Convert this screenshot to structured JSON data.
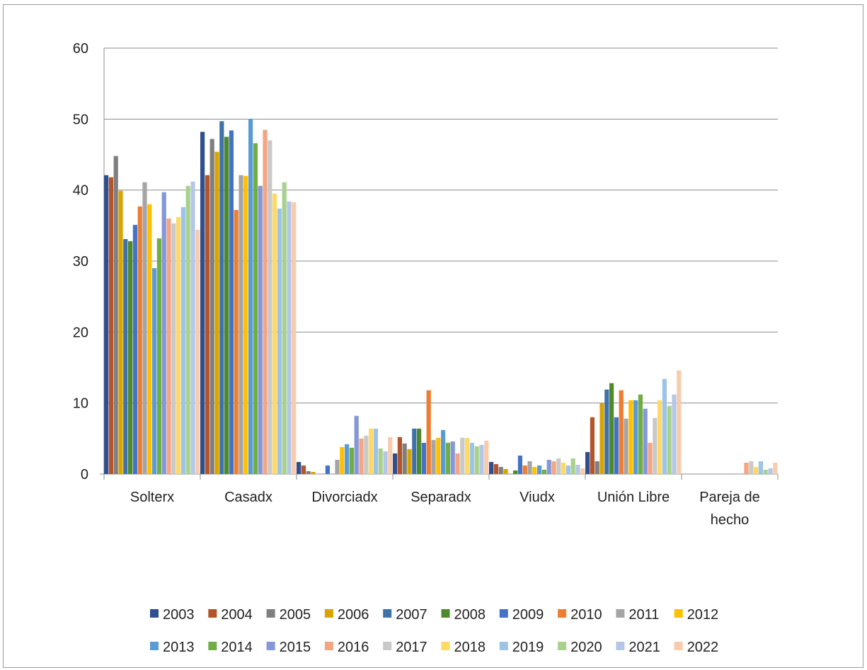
{
  "chart_data": {
    "type": "bar",
    "title": "",
    "xlabel": "",
    "ylabel": "",
    "ylim": [
      0,
      60
    ],
    "yticks": [
      0,
      10,
      20,
      30,
      40,
      50,
      60
    ],
    "grid": true,
    "legend_position": "bottom",
    "categories": [
      [
        "Solterx"
      ],
      [
        "Casadx"
      ],
      [
        "Divorciadx"
      ],
      [
        "Separadx"
      ],
      [
        "Viudx"
      ],
      [
        "Unión Libre"
      ],
      [
        "Pareja de",
        "hecho"
      ]
    ],
    "series": [
      {
        "name": "2003",
        "color": "#2F4F8F",
        "values": [
          42.1,
          48.2,
          1.7,
          2.9,
          1.7,
          3.1,
          0
        ]
      },
      {
        "name": "2004",
        "color": "#B4542A",
        "values": [
          41.8,
          42.1,
          1.2,
          5.2,
          1.4,
          8.0,
          0
        ]
      },
      {
        "name": "2005",
        "color": "#7F7F7F",
        "values": [
          44.8,
          47.2,
          0.4,
          4.3,
          1.0,
          1.8,
          0
        ]
      },
      {
        "name": "2006",
        "color": "#D9A400",
        "values": [
          39.9,
          45.4,
          0.3,
          3.5,
          0.7,
          10.0,
          0
        ]
      },
      {
        "name": "2007",
        "color": "#3E72A8",
        "values": [
          33.1,
          49.7,
          0,
          6.4,
          0,
          11.9,
          0
        ]
      },
      {
        "name": "2008",
        "color": "#4E8A2C",
        "values": [
          32.8,
          47.5,
          0,
          6.4,
          0.5,
          12.8,
          0
        ]
      },
      {
        "name": "2009",
        "color": "#4472C4",
        "values": [
          35.1,
          48.4,
          1.2,
          4.4,
          2.6,
          8.0,
          0
        ]
      },
      {
        "name": "2010",
        "color": "#ED7D31",
        "values": [
          37.7,
          37.2,
          0,
          11.8,
          1.2,
          11.8,
          0
        ]
      },
      {
        "name": "2011",
        "color": "#A5A5A5",
        "values": [
          41.1,
          42.1,
          2.0,
          4.8,
          1.8,
          7.8,
          0
        ]
      },
      {
        "name": "2012",
        "color": "#FFC000",
        "values": [
          38.0,
          42.0,
          3.8,
          5.1,
          1.0,
          10.4,
          0
        ]
      },
      {
        "name": "2013",
        "color": "#5B9BD5",
        "values": [
          29.0,
          50.0,
          4.2,
          6.2,
          1.2,
          10.4,
          0
        ]
      },
      {
        "name": "2014",
        "color": "#70AD47",
        "values": [
          33.2,
          46.6,
          3.7,
          4.4,
          0.6,
          11.2,
          0
        ]
      },
      {
        "name": "2015",
        "color": "#8497D8",
        "values": [
          39.7,
          40.6,
          8.2,
          4.6,
          2.0,
          9.2,
          0
        ]
      },
      {
        "name": "2016",
        "color": "#F4A582",
        "values": [
          36.0,
          48.5,
          5.0,
          2.9,
          1.8,
          4.4,
          1.6
        ]
      },
      {
        "name": "2017",
        "color": "#C9C9C9",
        "values": [
          35.3,
          47.0,
          5.4,
          5.1,
          2.2,
          7.9,
          1.8
        ]
      },
      {
        "name": "2018",
        "color": "#FFD966",
        "values": [
          36.2,
          39.5,
          6.4,
          5.1,
          1.6,
          10.4,
          1.0
        ]
      },
      {
        "name": "2019",
        "color": "#9DC3E6",
        "values": [
          37.6,
          37.4,
          6.4,
          4.4,
          1.2,
          13.4,
          1.8
        ]
      },
      {
        "name": "2020",
        "color": "#A9D18E",
        "values": [
          40.6,
          41.1,
          3.6,
          3.9,
          2.2,
          9.6,
          0.6
        ]
      },
      {
        "name": "2021",
        "color": "#B4C7E7",
        "values": [
          41.2,
          38.4,
          3.2,
          4.1,
          1.3,
          11.2,
          0.8
        ]
      },
      {
        "name": "2022",
        "color": "#F8CBAD",
        "values": [
          34.4,
          38.3,
          5.2,
          4.7,
          0.8,
          14.6,
          1.6
        ]
      }
    ]
  }
}
